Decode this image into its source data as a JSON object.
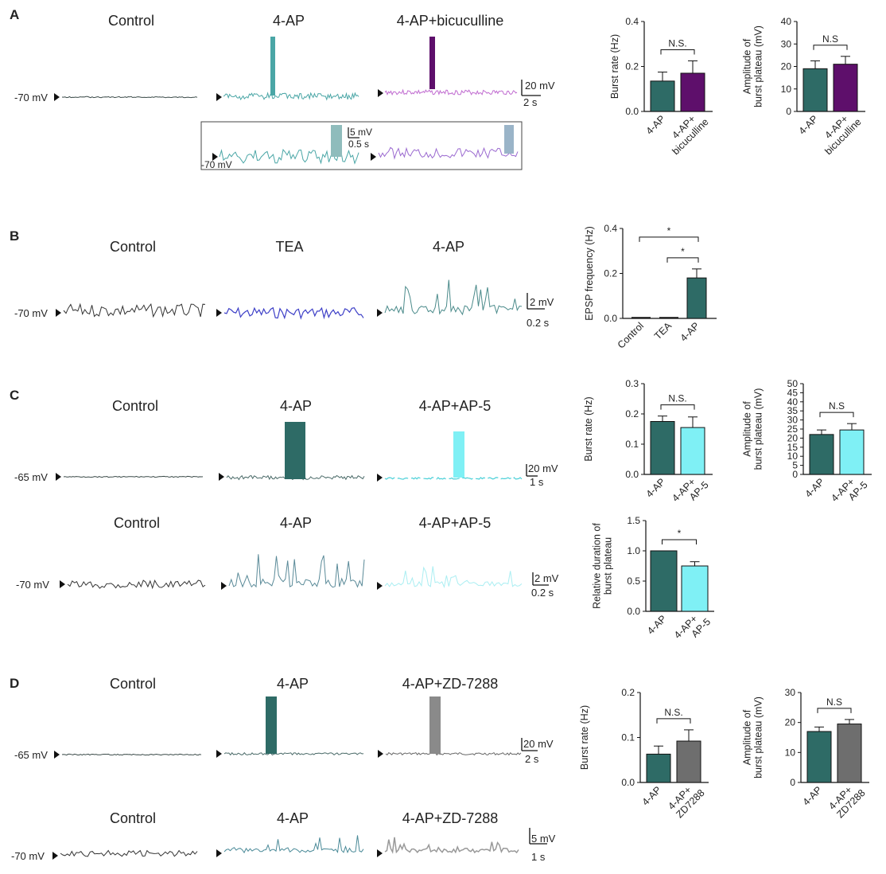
{
  "panels": {
    "A": {
      "letter": "A",
      "conditions": [
        "Control",
        "4-AP",
        "4-AP+bicuculline"
      ],
      "resting_label": "-70 mV",
      "scale_voltage": "20 mV",
      "scale_time": "2 s",
      "inset": {
        "scale_voltage": "5 mV",
        "scale_time": "0.5 s",
        "resting_label": "-70 mV"
      }
    },
    "B": {
      "letter": "B",
      "conditions": [
        "Control",
        "TEA",
        "4-AP"
      ],
      "resting_label": "-70 mV",
      "scale_voltage": "2 mV",
      "scale_time": "0.2 s"
    },
    "C": {
      "letter": "C",
      "row1": {
        "conditions": [
          "Control",
          "4-AP",
          "4-AP+AP-5"
        ],
        "resting_label": "-65 mV",
        "scale_voltage": "20 mV",
        "scale_time": "1 s"
      },
      "row2": {
        "conditions": [
          "Control",
          "4-AP",
          "4-AP+AP-5"
        ],
        "resting_label": "-70 mV",
        "scale_voltage": "2 mV",
        "scale_time": "0.2 s"
      }
    },
    "D": {
      "letter": "D",
      "row1": {
        "conditions": [
          "Control",
          "4-AP",
          "4-AP+ZD-7288"
        ],
        "resting_label": "-65 mV",
        "scale_voltage": "20 mV",
        "scale_time": "2 s"
      },
      "row2": {
        "conditions": [
          "Control",
          "4-AP",
          "4-AP+ZD-7288"
        ],
        "resting_label": "-70 mV",
        "scale_voltage": "5 mV",
        "scale_time": "1 s"
      }
    }
  },
  "colors": {
    "teal": "#2e6b66",
    "purple": "#5e0f6b",
    "blue": "#3d3fc7",
    "cyan": "#7ff0f5",
    "gray": "#7a7a7a",
    "trace_control": "#3a4a48",
    "trace_teal_light": "#4aa6a6"
  },
  "chart_data": [
    {
      "type": "bar",
      "id": "A1",
      "categories": [
        "4-AP",
        "4-AP+ bicuculline"
      ],
      "values": [
        0.135,
        0.17
      ],
      "errors": [
        0.04,
        0.055
      ],
      "colors": [
        "#2e6b66",
        "#5e0f6b"
      ],
      "ylabel": "Burst rate (Hz)",
      "ylim": [
        0,
        0.4
      ],
      "yticks": [
        "0.0",
        "0.2",
        "0.4"
      ],
      "significance": [
        {
          "pair": [
            0,
            1
          ],
          "label": "N.S."
        }
      ]
    },
    {
      "type": "bar",
      "id": "A2",
      "categories": [
        "4-AP",
        "4-AP+ bicuculline"
      ],
      "values": [
        19,
        21
      ],
      "errors": [
        3.5,
        3.5
      ],
      "colors": [
        "#2e6b66",
        "#5e0f6b"
      ],
      "ylabel": "Amplitude of burst plateau (mV)",
      "ylim": [
        0,
        40
      ],
      "yticks": [
        "0",
        "10",
        "20",
        "30",
        "40"
      ],
      "significance": [
        {
          "pair": [
            0,
            1
          ],
          "label": "N.S"
        }
      ]
    },
    {
      "type": "bar",
      "id": "B1",
      "categories": [
        "Control",
        "TEA",
        "4-AP"
      ],
      "values": [
        0,
        0,
        0.18
      ],
      "errors": [
        0,
        0,
        0.04
      ],
      "colors": [
        "#2e6b66",
        "#2e6b66",
        "#2e6b66"
      ],
      "ylabel": "EPSP frequency (Hz)",
      "ylim": [
        0,
        0.4
      ],
      "yticks": [
        "0.0",
        "0.2",
        "0.4"
      ],
      "significance": [
        {
          "pair": [
            0,
            2
          ],
          "label": "*"
        },
        {
          "pair": [
            1,
            2
          ],
          "label": "*"
        }
      ]
    },
    {
      "type": "bar",
      "id": "C1",
      "categories": [
        "4-AP",
        "4-AP+ AP-5"
      ],
      "values": [
        0.175,
        0.155
      ],
      "errors": [
        0.018,
        0.035
      ],
      "colors": [
        "#2e6b66",
        "#7ff0f5"
      ],
      "ylabel": "Burst rate (Hz)",
      "ylim": [
        0,
        0.3
      ],
      "yticks": [
        "0.0",
        "0.1",
        "0.2",
        "0.3"
      ],
      "significance": [
        {
          "pair": [
            0,
            1
          ],
          "label": "N.S."
        }
      ]
    },
    {
      "type": "bar",
      "id": "C2",
      "categories": [
        "4-AP",
        "4-AP+ AP-5"
      ],
      "values": [
        22,
        24.5
      ],
      "errors": [
        2.5,
        3.5
      ],
      "colors": [
        "#2e6b66",
        "#7ff0f5"
      ],
      "ylabel": "Amplitude of burst plateau (mV)",
      "ylim": [
        0,
        50
      ],
      "yticks": [
        "0",
        "5",
        "10",
        "15",
        "20",
        "25",
        "30",
        "35",
        "40",
        "45",
        "50"
      ],
      "significance": [
        {
          "pair": [
            0,
            1
          ],
          "label": "N.S"
        }
      ]
    },
    {
      "type": "bar",
      "id": "C3",
      "categories": [
        "4-AP",
        "4-AP+ AP-5"
      ],
      "values": [
        1.0,
        0.75
      ],
      "errors": [
        0,
        0.07
      ],
      "colors": [
        "#2e6b66",
        "#7ff0f5"
      ],
      "ylabel": "Relative duration of burst plateau",
      "ylim": [
        0,
        1.5
      ],
      "yticks": [
        "0.0",
        "0.5",
        "1.0",
        "1.5"
      ],
      "significance": [
        {
          "pair": [
            0,
            1
          ],
          "label": "*"
        }
      ]
    },
    {
      "type": "bar",
      "id": "D1",
      "categories": [
        "4-AP",
        "4-AP+ ZD7288"
      ],
      "values": [
        0.063,
        0.092
      ],
      "errors": [
        0.018,
        0.025
      ],
      "colors": [
        "#2e6b66",
        "#6e6e6e"
      ],
      "ylabel": "Burst rate (Hz)",
      "ylim": [
        0,
        0.2
      ],
      "yticks": [
        "0.0",
        "0.1",
        "0.2"
      ],
      "significance": [
        {
          "pair": [
            0,
            1
          ],
          "label": "N.S."
        }
      ]
    },
    {
      "type": "bar",
      "id": "D2",
      "categories": [
        "4-AP",
        "4-AP+ ZD7288"
      ],
      "values": [
        17,
        19.5
      ],
      "errors": [
        1.5,
        1.5
      ],
      "colors": [
        "#2e6b66",
        "#6e6e6e"
      ],
      "ylabel": "Amplitude of burst plateau (mV)",
      "ylim": [
        0,
        30
      ],
      "yticks": [
        "0",
        "10",
        "20",
        "30"
      ],
      "significance": [
        {
          "pair": [
            0,
            1
          ],
          "label": "N.S"
        }
      ]
    }
  ]
}
